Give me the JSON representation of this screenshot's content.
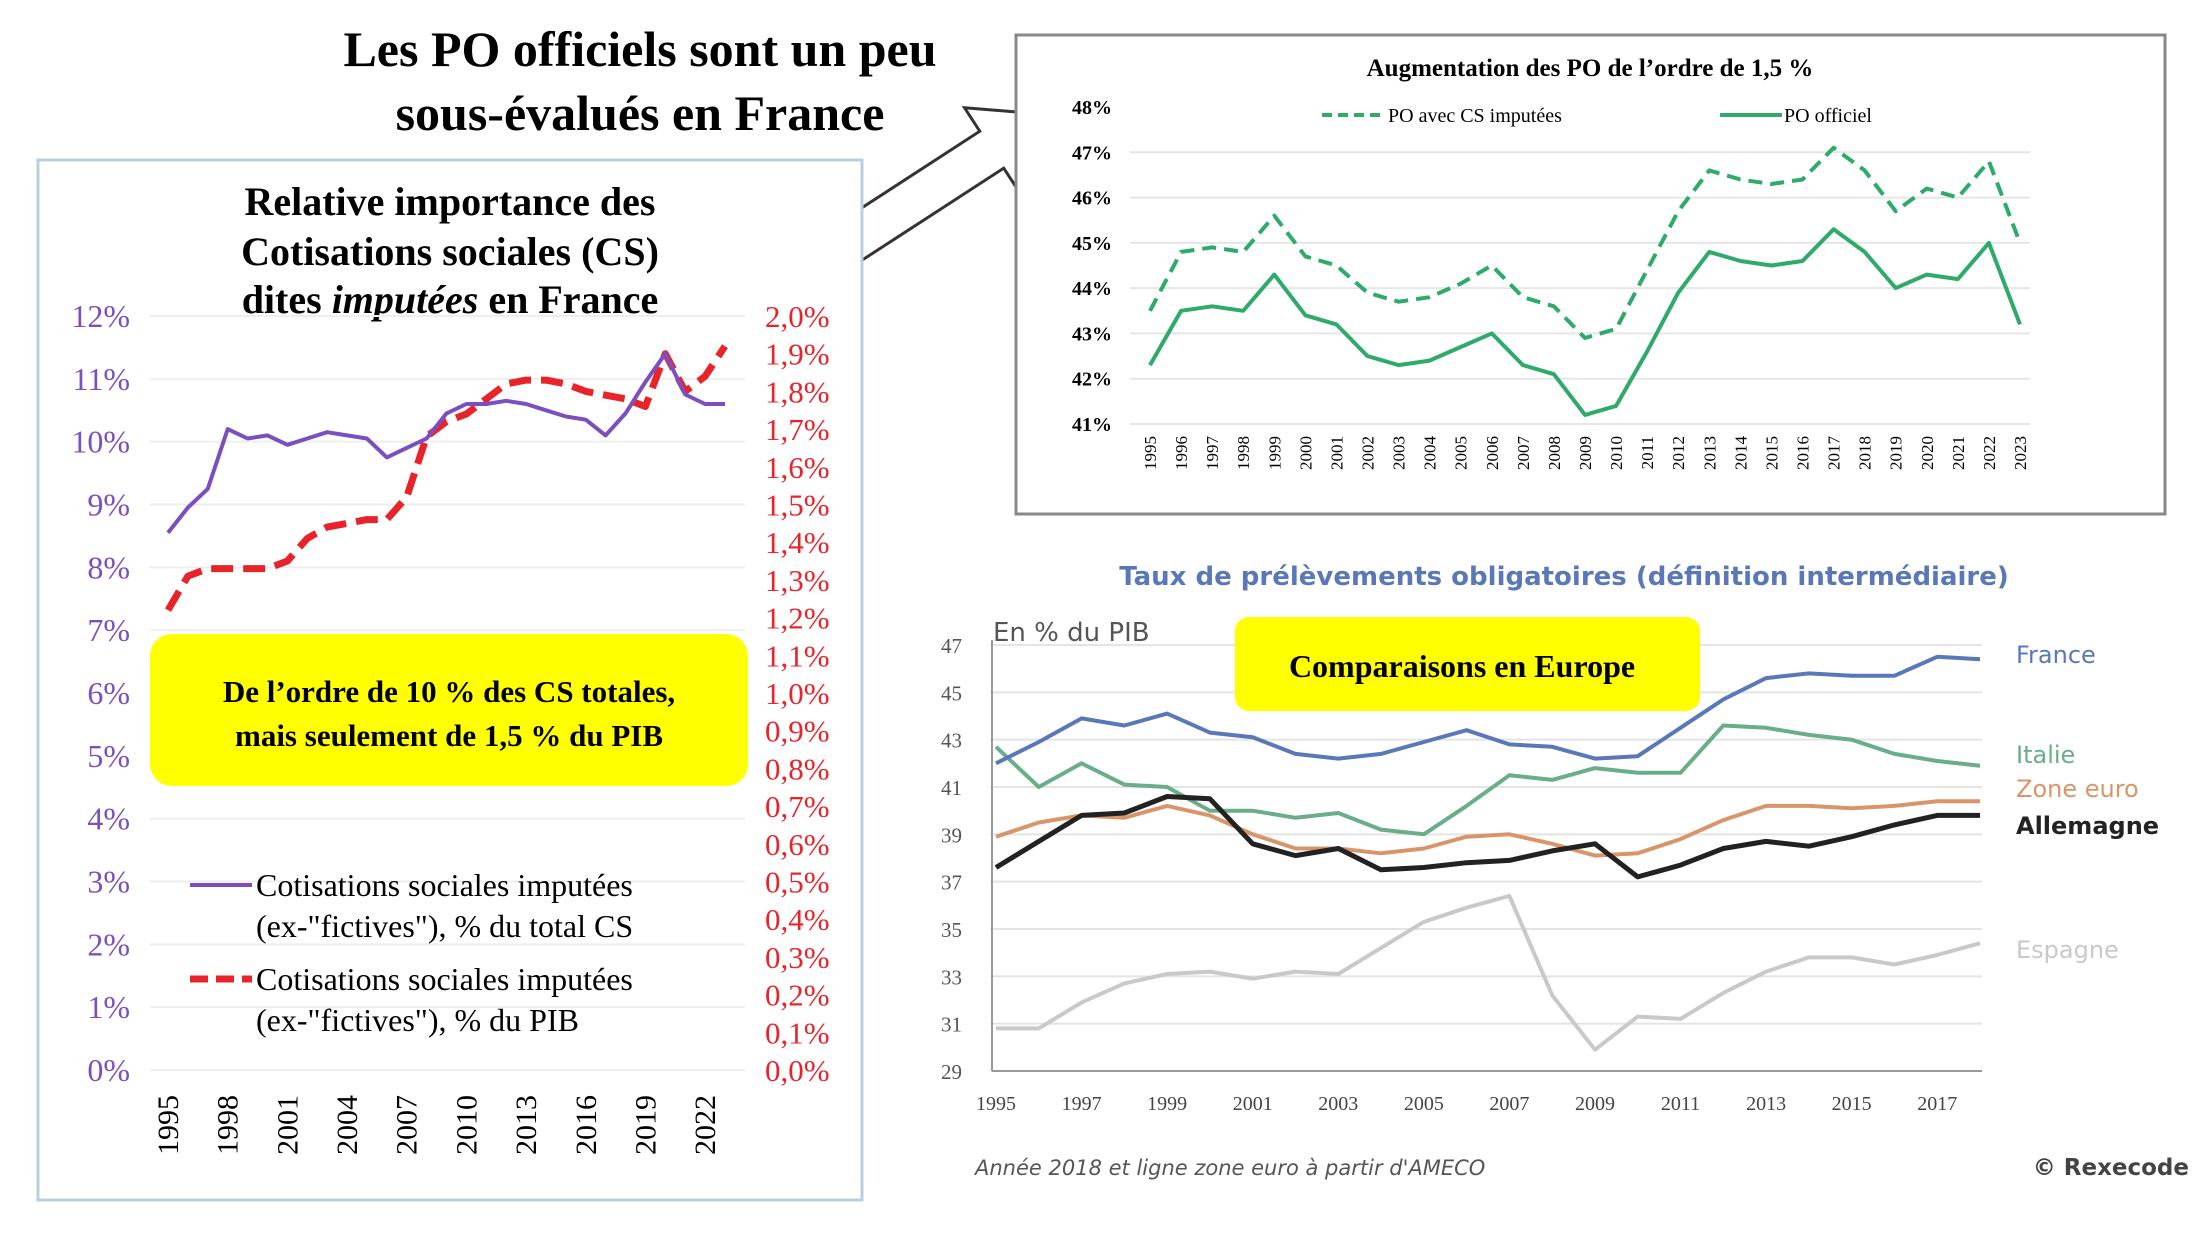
{
  "main_title": [
    "Les PO officiels sont un peu",
    "sous-évalués en France"
  ],
  "colors": {
    "purple": "#7b4fbf",
    "red": "#e8242a",
    "green": "#2eaa6b",
    "france": "#5a78b8",
    "italie": "#6aad8a",
    "zone_euro": "#d9956a",
    "allemagne": "#222222",
    "espagne": "#c9c9c9",
    "highlight": "#ffff00",
    "panel_border": "#b8cfe0"
  },
  "chart_data": [
    {
      "type": "line",
      "title": [
        "Relative importance des",
        "Cotisations sociales (CS)",
        "dites ",
        "imputées",
        " en France"
      ],
      "annotation": [
        "De l’ordre de 10 % des CS totales,",
        "mais seulement de 1,5 % du PIB"
      ],
      "x": [
        1995,
        1996,
        1997,
        1998,
        1999,
        2000,
        2001,
        2002,
        2003,
        2004,
        2005,
        2006,
        2007,
        2008,
        2009,
        2010,
        2011,
        2012,
        2013,
        2014,
        2015,
        2016,
        2017,
        2018,
        2019,
        2020,
        2021,
        2022,
        2023
      ],
      "x_tick_labels": [
        "1995",
        "1998",
        "2001",
        "2004",
        "2007",
        "2010",
        "2013",
        "2016",
        "2019",
        "2022"
      ],
      "y_left": {
        "ylim": [
          0,
          12
        ],
        "tick_labels": [
          "0%",
          "1%",
          "2%",
          "3%",
          "4%",
          "5%",
          "6%",
          "7%",
          "8%",
          "9%",
          "10%",
          "11%",
          "12%"
        ]
      },
      "y_right": {
        "ylim": [
          0,
          2.0
        ],
        "tick_labels": [
          "0,0%",
          "0,1%",
          "0,2%",
          "0,3%",
          "0,4%",
          "0,5%",
          "0,6%",
          "0,7%",
          "0,8%",
          "0,9%",
          "1,0%",
          "1,1%",
          "1,2%",
          "1,3%",
          "1,4%",
          "1,5%",
          "1,6%",
          "1,7%",
          "1,8%",
          "1,9%",
          "2,0%"
        ]
      },
      "grid": true,
      "legend_placement": "bottom-left",
      "series": [
        {
          "name": [
            "Cotisations sociales imputées",
            "(ex-\"fictives\"), % du total CS"
          ],
          "axis": "left",
          "style": "solid",
          "color": "#7b4fbf",
          "values": [
            8.55,
            8.95,
            9.25,
            10.2,
            10.05,
            10.1,
            9.95,
            10.05,
            10.15,
            10.1,
            10.05,
            9.75,
            9.9,
            10.05,
            10.45,
            10.6,
            10.6,
            10.65,
            10.6,
            10.5,
            10.4,
            10.35,
            10.1,
            10.45,
            10.95,
            11.4,
            10.75,
            10.6,
            10.6
          ]
        },
        {
          "name": [
            "Cotisations sociales imputées",
            "(ex-\"fictives\"), % du PIB"
          ],
          "axis": "right",
          "style": "dashed",
          "color": "#e8242a",
          "values": [
            1.22,
            1.31,
            1.33,
            1.33,
            1.33,
            1.33,
            1.35,
            1.41,
            1.44,
            1.45,
            1.46,
            1.46,
            1.52,
            1.68,
            1.72,
            1.74,
            1.78,
            1.82,
            1.83,
            1.83,
            1.82,
            1.8,
            1.79,
            1.78,
            1.76,
            1.9,
            1.8,
            1.84,
            1.92
          ]
        }
      ]
    },
    {
      "type": "line",
      "title": "Augmentation des PO de l’ordre de 1,5 %",
      "x": [
        1995,
        1996,
        1997,
        1998,
        1999,
        2000,
        2001,
        2002,
        2003,
        2004,
        2005,
        2006,
        2007,
        2008,
        2009,
        2010,
        2011,
        2012,
        2013,
        2014,
        2015,
        2016,
        2017,
        2018,
        2019,
        2020,
        2021,
        2022,
        2023
      ],
      "x_tick_labels": [
        "1995",
        "1996",
        "1997",
        "1998",
        "1999",
        "2000",
        "2001",
        "2002",
        "2003",
        "2004",
        "2005",
        "2006",
        "2007",
        "2008",
        "2009",
        "2010",
        "2011",
        "2012",
        "2013",
        "2014",
        "2015",
        "2016",
        "2017",
        "2018",
        "2019",
        "2020",
        "2021",
        "2022",
        "2023"
      ],
      "ylim": [
        41,
        48
      ],
      "y_tick_labels": [
        "41%",
        "42%",
        "43%",
        "44%",
        "45%",
        "46%",
        "47%",
        "48%"
      ],
      "grid": true,
      "legend_placement": "top",
      "series": [
        {
          "name": "PO avec CS imputées",
          "style": "dashed",
          "color": "#2eaa6b",
          "values": [
            43.5,
            44.8,
            44.9,
            44.8,
            45.6,
            44.7,
            44.5,
            43.9,
            43.7,
            43.8,
            44.1,
            44.5,
            43.8,
            43.6,
            42.9,
            43.1,
            44.4,
            45.7,
            46.6,
            46.4,
            46.3,
            46.4,
            47.1,
            46.6,
            45.7,
            46.2,
            46.0,
            46.8,
            45.0
          ]
        },
        {
          "name": "PO officiel",
          "style": "solid",
          "color": "#2eaa6b",
          "values": [
            42.3,
            43.5,
            43.6,
            43.5,
            44.3,
            43.4,
            43.2,
            42.5,
            42.3,
            42.4,
            42.7,
            43.0,
            42.3,
            42.1,
            41.2,
            41.4,
            42.6,
            43.9,
            44.8,
            44.6,
            44.5,
            44.6,
            45.3,
            44.8,
            44.0,
            44.3,
            44.2,
            45.0,
            43.2
          ]
        }
      ]
    },
    {
      "type": "line",
      "title": "Taux de prélèvements obligatoires (définition intermédiaire)",
      "ylabel": "En % du PIB",
      "annotation": "Comparaisons en Europe",
      "footnote": "Année 2018 et ligne zone euro à partir d'AMECO",
      "source": "© Rexecode",
      "x": [
        1995,
        1996,
        1997,
        1998,
        1999,
        2000,
        2001,
        2002,
        2003,
        2004,
        2005,
        2006,
        2007,
        2008,
        2009,
        2010,
        2011,
        2012,
        2013,
        2014,
        2015,
        2016,
        2017,
        2018
      ],
      "x_tick_labels": [
        "1995",
        "1997",
        "1999",
        "2001",
        "2003",
        "2005",
        "2007",
        "2009",
        "2011",
        "2013",
        "2015",
        "2017"
      ],
      "ylim": [
        29,
        47
      ],
      "y_tick_labels": [
        "29",
        "31",
        "33",
        "35",
        "37",
        "39",
        "41",
        "43",
        "45",
        "47"
      ],
      "grid": true,
      "legend_placement": "right (labels at line ends)",
      "series": [
        {
          "name": "France",
          "color": "#5a78b8",
          "values": [
            42.0,
            42.9,
            43.9,
            43.6,
            44.1,
            43.3,
            43.1,
            42.4,
            42.2,
            42.4,
            42.9,
            43.4,
            42.8,
            42.7,
            42.2,
            42.3,
            43.5,
            44.7,
            45.6,
            45.8,
            45.7,
            45.7,
            46.5,
            46.4
          ]
        },
        {
          "name": "Italie",
          "color": "#6aad8a",
          "values": [
            42.7,
            41.0,
            42.0,
            41.1,
            41.0,
            40.0,
            40.0,
            39.7,
            39.9,
            39.2,
            39.0,
            40.2,
            41.5,
            41.3,
            41.8,
            41.6,
            41.6,
            43.6,
            43.5,
            43.2,
            43.0,
            42.4,
            42.1,
            41.9
          ]
        },
        {
          "name": "Zone euro",
          "color": "#d9956a",
          "values": [
            38.9,
            39.5,
            39.8,
            39.7,
            40.2,
            39.8,
            39.0,
            38.4,
            38.4,
            38.2,
            38.4,
            38.9,
            39.0,
            38.6,
            38.1,
            38.2,
            38.8,
            39.6,
            40.2,
            40.2,
            40.1,
            40.2,
            40.4,
            40.4
          ]
        },
        {
          "name": "Allemagne",
          "color": "#222222",
          "values": [
            37.6,
            38.7,
            39.8,
            39.9,
            40.6,
            40.5,
            38.6,
            38.1,
            38.4,
            37.5,
            37.6,
            37.8,
            37.9,
            38.3,
            38.6,
            37.2,
            37.7,
            38.4,
            38.7,
            38.5,
            38.9,
            39.4,
            39.8,
            39.8
          ]
        },
        {
          "name": "Espagne",
          "color": "#c9c9c9",
          "values": [
            30.8,
            30.8,
            31.9,
            32.7,
            33.1,
            33.2,
            32.9,
            33.2,
            33.1,
            34.2,
            35.3,
            35.9,
            36.4,
            32.2,
            29.9,
            31.3,
            31.2,
            32.3,
            33.2,
            33.8,
            33.8,
            33.5,
            33.9,
            34.4
          ]
        }
      ]
    }
  ]
}
